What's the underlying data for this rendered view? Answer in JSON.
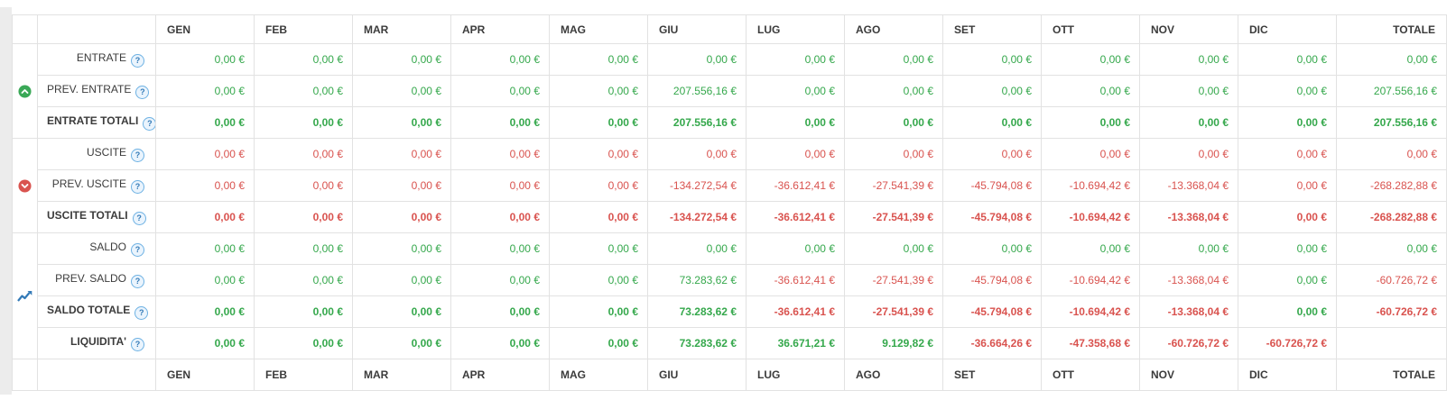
{
  "table": {
    "months": [
      "GEN",
      "FEB",
      "MAR",
      "APR",
      "MAG",
      "GIU",
      "LUG",
      "AGO",
      "SET",
      "OTT",
      "NOV",
      "DIC"
    ],
    "total_header": "TOTALE",
    "help_glyph": "?",
    "colors": {
      "positive_value": "#35a84c",
      "negative_value": "#d9534f",
      "entrate_group_icon": "#3aa857",
      "uscite_group_icon": "#d9534f",
      "saldo_group_icon": "#337ab7",
      "help_icon": "#337ab7"
    },
    "groups": [
      {
        "name": "entrate",
        "icon": "chevron-up-circle-icon",
        "icon_color": "#3aa857",
        "start": 0,
        "count": 3
      },
      {
        "name": "uscite",
        "icon": "chevron-down-circle-icon",
        "icon_color": "#d9534f",
        "start": 3,
        "count": 3
      },
      {
        "name": "saldo",
        "icon": "chart-line-icon",
        "icon_color": "#337ab7",
        "start": 6,
        "count": 4
      }
    ],
    "rows": [
      {
        "key": "entrate",
        "label": "ENTRATE",
        "bold": false,
        "values": [
          "0,00 €",
          "0,00 €",
          "0,00 €",
          "0,00 €",
          "0,00 €",
          "0,00 €",
          "0,00 €",
          "0,00 €",
          "0,00 €",
          "0,00 €",
          "0,00 €",
          "0,00 €",
          "0,00 €"
        ],
        "colors": [
          "g",
          "g",
          "g",
          "g",
          "g",
          "g",
          "g",
          "g",
          "g",
          "g",
          "g",
          "g",
          "g"
        ]
      },
      {
        "key": "prev-entrate",
        "label": "PREV. ENTRATE",
        "bold": false,
        "values": [
          "0,00 €",
          "0,00 €",
          "0,00 €",
          "0,00 €",
          "0,00 €",
          "207.556,16 €",
          "0,00 €",
          "0,00 €",
          "0,00 €",
          "0,00 €",
          "0,00 €",
          "0,00 €",
          "207.556,16 €"
        ],
        "colors": [
          "g",
          "g",
          "g",
          "g",
          "g",
          "g",
          "g",
          "g",
          "g",
          "g",
          "g",
          "g",
          "g"
        ]
      },
      {
        "key": "entrate-totali",
        "label": "ENTRATE TOTALI",
        "bold": true,
        "values": [
          "0,00 €",
          "0,00 €",
          "0,00 €",
          "0,00 €",
          "0,00 €",
          "207.556,16 €",
          "0,00 €",
          "0,00 €",
          "0,00 €",
          "0,00 €",
          "0,00 €",
          "0,00 €",
          "207.556,16 €"
        ],
        "colors": [
          "g",
          "g",
          "g",
          "g",
          "g",
          "g",
          "g",
          "g",
          "g",
          "g",
          "g",
          "g",
          "g"
        ]
      },
      {
        "key": "uscite",
        "label": "USCITE",
        "bold": false,
        "values": [
          "0,00 €",
          "0,00 €",
          "0,00 €",
          "0,00 €",
          "0,00 €",
          "0,00 €",
          "0,00 €",
          "0,00 €",
          "0,00 €",
          "0,00 €",
          "0,00 €",
          "0,00 €",
          "0,00 €"
        ],
        "colors": [
          "r",
          "r",
          "r",
          "r",
          "r",
          "r",
          "r",
          "r",
          "r",
          "r",
          "r",
          "r",
          "r"
        ]
      },
      {
        "key": "prev-uscite",
        "label": "PREV. USCITE",
        "bold": false,
        "values": [
          "0,00 €",
          "0,00 €",
          "0,00 €",
          "0,00 €",
          "0,00 €",
          "-134.272,54 €",
          "-36.612,41 €",
          "-27.541,39 €",
          "-45.794,08 €",
          "-10.694,42 €",
          "-13.368,04 €",
          "0,00 €",
          "-268.282,88 €"
        ],
        "colors": [
          "r",
          "r",
          "r",
          "r",
          "r",
          "r",
          "r",
          "r",
          "r",
          "r",
          "r",
          "r",
          "r"
        ]
      },
      {
        "key": "uscite-totali",
        "label": "USCITE TOTALI",
        "bold": true,
        "values": [
          "0,00 €",
          "0,00 €",
          "0,00 €",
          "0,00 €",
          "0,00 €",
          "-134.272,54 €",
          "-36.612,41 €",
          "-27.541,39 €",
          "-45.794,08 €",
          "-10.694,42 €",
          "-13.368,04 €",
          "0,00 €",
          "-268.282,88 €"
        ],
        "colors": [
          "r",
          "r",
          "r",
          "r",
          "r",
          "r",
          "r",
          "r",
          "r",
          "r",
          "r",
          "r",
          "r"
        ]
      },
      {
        "key": "saldo",
        "label": "SALDO",
        "bold": false,
        "values": [
          "0,00 €",
          "0,00 €",
          "0,00 €",
          "0,00 €",
          "0,00 €",
          "0,00 €",
          "0,00 €",
          "0,00 €",
          "0,00 €",
          "0,00 €",
          "0,00 €",
          "0,00 €",
          "0,00 €"
        ],
        "colors": [
          "g",
          "g",
          "g",
          "g",
          "g",
          "g",
          "g",
          "g",
          "g",
          "g",
          "g",
          "g",
          "g"
        ]
      },
      {
        "key": "prev-saldo",
        "label": "PREV. SALDO",
        "bold": false,
        "values": [
          "0,00 €",
          "0,00 €",
          "0,00 €",
          "0,00 €",
          "0,00 €",
          "73.283,62 €",
          "-36.612,41 €",
          "-27.541,39 €",
          "-45.794,08 €",
          "-10.694,42 €",
          "-13.368,04 €",
          "0,00 €",
          "-60.726,72 €"
        ],
        "colors": [
          "g",
          "g",
          "g",
          "g",
          "g",
          "g",
          "r",
          "r",
          "r",
          "r",
          "r",
          "g",
          "r"
        ]
      },
      {
        "key": "saldo-totale",
        "label": "SALDO TOTALE",
        "bold": true,
        "values": [
          "0,00 €",
          "0,00 €",
          "0,00 €",
          "0,00 €",
          "0,00 €",
          "73.283,62 €",
          "-36.612,41 €",
          "-27.541,39 €",
          "-45.794,08 €",
          "-10.694,42 €",
          "-13.368,04 €",
          "0,00 €",
          "-60.726,72 €"
        ],
        "colors": [
          "g",
          "g",
          "g",
          "g",
          "g",
          "g",
          "r",
          "r",
          "r",
          "r",
          "r",
          "g",
          "r"
        ]
      },
      {
        "key": "liquidita",
        "label": "LIQUIDITA'",
        "bold": true,
        "values": [
          "0,00 €",
          "0,00 €",
          "0,00 €",
          "0,00 €",
          "0,00 €",
          "73.283,62 €",
          "36.671,21 €",
          "9.129,82 €",
          "-36.664,26 €",
          "-47.358,68 €",
          "-60.726,72 €",
          "-60.726,72 €",
          ""
        ],
        "colors": [
          "g",
          "g",
          "g",
          "g",
          "g",
          "g",
          "g",
          "g",
          "r",
          "r",
          "r",
          "r",
          ""
        ]
      }
    ]
  }
}
